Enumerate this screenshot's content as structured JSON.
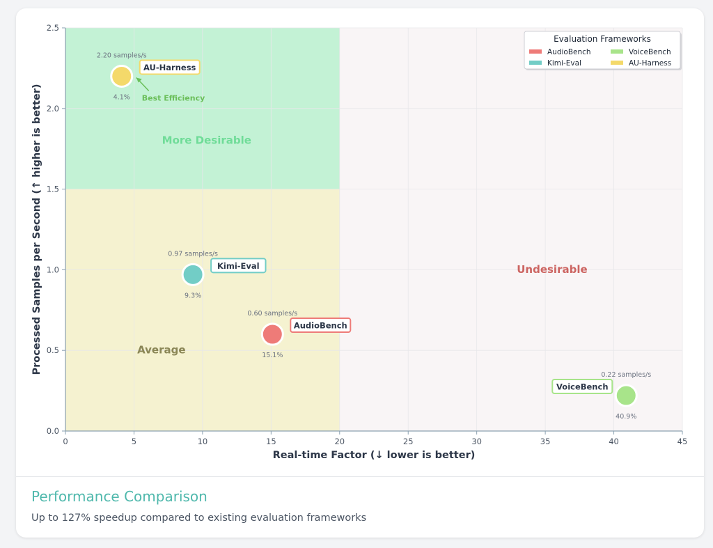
{
  "card": {
    "title": "Performance Comparison",
    "subtitle": "Up to 127% speedup compared to existing evaluation frameworks"
  },
  "chart_data": {
    "type": "scatter",
    "xlabel": "Real-time Factor (↓ lower is better)",
    "ylabel": "Processed Samples per Second (↑ higher is better)",
    "xlim": [
      0,
      45
    ],
    "ylim": [
      0,
      2.5
    ],
    "x_ticks": [
      0,
      5,
      10,
      15,
      20,
      25,
      30,
      35,
      40,
      45
    ],
    "y_ticks": [
      "0.0",
      "0.5",
      "1.0",
      "1.5",
      "2.0",
      "2.5"
    ],
    "grid": true,
    "legend": {
      "title": "Evaluation Frameworks",
      "position": "top-right",
      "entries": [
        {
          "name": "AudioBench",
          "color": "#ee7b78"
        },
        {
          "name": "VoiceBench",
          "color": "#a8e48a"
        },
        {
          "name": "Kimi-Eval",
          "color": "#72cdc6"
        },
        {
          "name": "AU-Harness",
          "color": "#f4d96a"
        }
      ]
    },
    "regions": [
      {
        "label": "More Desirable",
        "x_range": [
          0,
          20
        ],
        "y_range": [
          1.5,
          2.5
        ],
        "color": "#c3f2d5",
        "label_color": "#6fdc98"
      },
      {
        "label": "Average",
        "x_range": [
          0,
          20
        ],
        "y_range": [
          0,
          1.5
        ],
        "color": "#f5f2d0",
        "label_color": "#8a8656"
      },
      {
        "label": "Undesirable",
        "x_range": [
          20,
          45
        ],
        "y_range": [
          0,
          2.5
        ],
        "color": "#f9f5f6",
        "label_color": "#cc6461"
      }
    ],
    "series": [
      {
        "name": "AU-Harness",
        "x": 4.1,
        "y": 2.2,
        "top_label": "2.20 samples/s",
        "bottom_label": "4.1%",
        "color": "#f4d96a",
        "side": "right"
      },
      {
        "name": "Kimi-Eval",
        "x": 9.3,
        "y": 0.97,
        "top_label": "0.97 samples/s",
        "bottom_label": "9.3%",
        "color": "#72cdc6",
        "side": "right"
      },
      {
        "name": "AudioBench",
        "x": 15.1,
        "y": 0.6,
        "top_label": "0.60 samples/s",
        "bottom_label": "15.1%",
        "color": "#ee7b78",
        "side": "right"
      },
      {
        "name": "VoiceBench",
        "x": 40.9,
        "y": 0.22,
        "top_label": "0.22 samples/s",
        "bottom_label": "40.9%",
        "color": "#a8e48a",
        "side": "left"
      }
    ],
    "annotations": [
      {
        "text": "Best Efficiency",
        "target": "AU-Harness",
        "color": "#6bbf5a"
      }
    ]
  }
}
